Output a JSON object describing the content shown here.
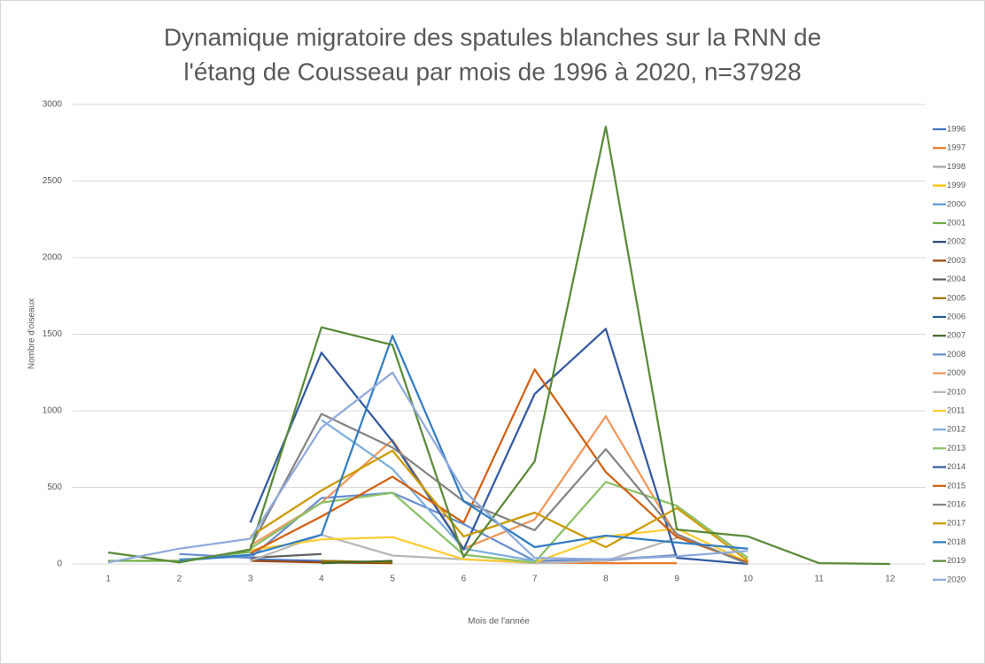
{
  "chart_data": {
    "type": "line",
    "title": [
      "Dynamique migratoire des spatules blanches sur la RNN de",
      "l'étang de Cousseau par mois de 1996 à 2020, n=37928"
    ],
    "x_label": "Mois de l'année",
    "y_label": "Nombre d'oiseaux",
    "categories": [
      "1",
      "2",
      "3",
      "4",
      "5",
      "6",
      "7",
      "8",
      "9",
      "10",
      "11",
      "12"
    ],
    "ylim": [
      0,
      3000
    ],
    "yticks": [
      0,
      500,
      1000,
      1500,
      2000,
      2500,
      3000
    ],
    "grid": true,
    "legend": "right",
    "series": [
      {
        "name": "1996",
        "color": "#4472C4",
        "values": [
          null,
          null,
          30,
          20,
          10,
          null,
          null,
          null,
          null,
          null,
          null,
          null
        ]
      },
      {
        "name": "1997",
        "color": "#ED7D31",
        "values": [
          null,
          null,
          null,
          null,
          null,
          null,
          10,
          5,
          5,
          null,
          null,
          null
        ]
      },
      {
        "name": "1998",
        "color": "#A5A5A5",
        "values": [
          null,
          null,
          null,
          null,
          null,
          null,
          null,
          20,
          60,
          null,
          null,
          null
        ]
      },
      {
        "name": "1999",
        "color": "#FFC000",
        "values": [
          null,
          null,
          null,
          null,
          null,
          null,
          null,
          null,
          null,
          null,
          null,
          null
        ]
      },
      {
        "name": "2000",
        "color": "#5B9BD5",
        "values": [
          null,
          30,
          50,
          null,
          null,
          null,
          null,
          null,
          null,
          null,
          null,
          null
        ]
      },
      {
        "name": "2001",
        "color": "#70AD47",
        "values": [
          20,
          20,
          80,
          null,
          null,
          null,
          null,
          null,
          null,
          null,
          null,
          null
        ]
      },
      {
        "name": "2002",
        "color": "#264478",
        "values": [
          null,
          null,
          null,
          null,
          null,
          null,
          null,
          null,
          null,
          null,
          null,
          null
        ]
      },
      {
        "name": "2003",
        "color": "#9E480E",
        "values": [
          null,
          null,
          20,
          10,
          5,
          null,
          null,
          null,
          null,
          null,
          null,
          null
        ]
      },
      {
        "name": "2004",
        "color": "#636363",
        "values": [
          null,
          null,
          40,
          65,
          null,
          null,
          null,
          null,
          null,
          null,
          null,
          null
        ]
      },
      {
        "name": "2005",
        "color": "#997300",
        "values": [
          null,
          null,
          null,
          20,
          10,
          null,
          null,
          null,
          null,
          null,
          null,
          null
        ]
      },
      {
        "name": "2006",
        "color": "#255E91",
        "values": [
          null,
          null,
          null,
          null,
          null,
          null,
          null,
          null,
          50,
          null,
          null,
          null
        ]
      },
      {
        "name": "2007",
        "color": "#43682B",
        "values": [
          null,
          null,
          null,
          5,
          20,
          null,
          null,
          null,
          null,
          null,
          null,
          null
        ]
      },
      {
        "name": "2008",
        "color": "#698ED0",
        "values": [
          null,
          65,
          40,
          430,
          465,
          260,
          20,
          30,
          55,
          null,
          null,
          null
        ]
      },
      {
        "name": "2009",
        "color": "#F1975A",
        "values": [
          null,
          null,
          120,
          400,
          810,
          100,
          290,
          965,
          180,
          5,
          null,
          null
        ]
      },
      {
        "name": "2010",
        "color": "#B7B7B7",
        "values": [
          null,
          null,
          20,
          190,
          55,
          30,
          5,
          20,
          170,
          null,
          null,
          null
        ]
      },
      {
        "name": "2011",
        "color": "#FFCD33",
        "values": [
          null,
          null,
          90,
          160,
          175,
          30,
          10,
          180,
          230,
          10,
          null,
          null
        ]
      },
      {
        "name": "2012",
        "color": "#7CAFDD",
        "values": [
          null,
          null,
          null,
          940,
          620,
          100,
          20,
          null,
          null,
          null,
          null,
          null
        ]
      },
      {
        "name": "2013",
        "color": "#8CC168",
        "values": [
          null,
          null,
          100,
          400,
          465,
          60,
          10,
          535,
          380,
          40,
          null,
          null
        ]
      },
      {
        "name": "2014",
        "color": "#335AA1",
        "values": [
          null,
          null,
          270,
          1380,
          800,
          95,
          1110,
          1535,
          40,
          0,
          null,
          null
        ]
      },
      {
        "name": "2015",
        "color": "#D26012",
        "values": [
          null,
          null,
          70,
          310,
          570,
          270,
          1270,
          600,
          175,
          10,
          null,
          null
        ]
      },
      {
        "name": "2016",
        "color": "#848484",
        "values": [
          null,
          null,
          110,
          980,
          760,
          410,
          220,
          750,
          195,
          0,
          null,
          null
        ]
      },
      {
        "name": "2017",
        "color": "#CC9A00",
        "values": [
          null,
          null,
          180,
          480,
          740,
          180,
          335,
          110,
          365,
          20,
          null,
          null
        ]
      },
      {
        "name": "2018",
        "color": "#327DC2",
        "values": [
          null,
          20,
          60,
          190,
          1490,
          410,
          110,
          185,
          140,
          100,
          null,
          null
        ]
      },
      {
        "name": "2019",
        "color": "#5A8A39",
        "values": [
          75,
          10,
          95,
          1545,
          1430,
          45,
          670,
          2855,
          225,
          180,
          5,
          0
        ]
      },
      {
        "name": "2020",
        "color": "#8FAADC",
        "values": [
          10,
          100,
          165,
          890,
          1250,
          480,
          40,
          30,
          50,
          85,
          null,
          null
        ]
      }
    ]
  }
}
